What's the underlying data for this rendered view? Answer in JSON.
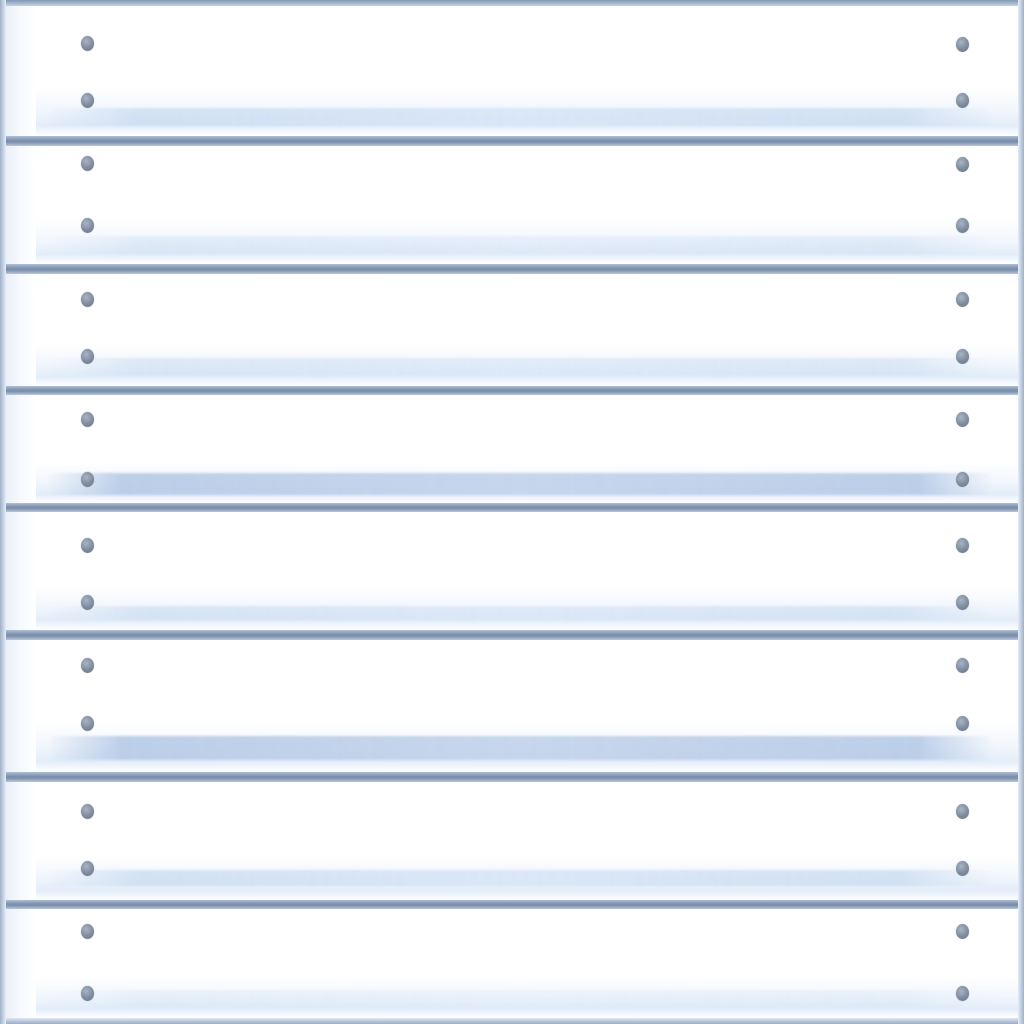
{
  "scene": {
    "subject": "painted-wood-plank-wall",
    "plank_count": 8,
    "nails_per_plank": 4,
    "colors": {
      "plank": "#ffffff",
      "gap": "#7c8fab",
      "nail": "#7f8c9e",
      "shade": "#d6e4f6"
    }
  }
}
